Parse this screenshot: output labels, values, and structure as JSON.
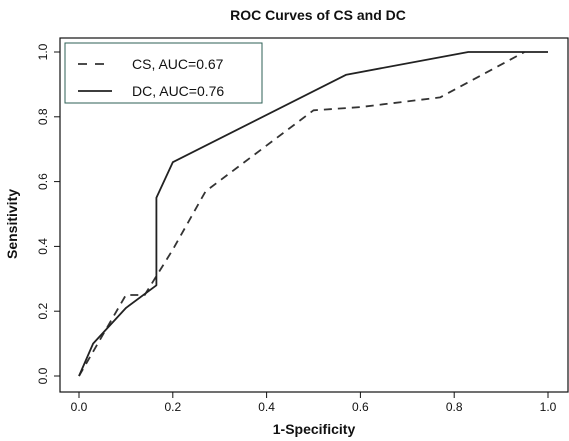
{
  "chart_data": {
    "type": "line",
    "title": "ROC Curves of CS and DC",
    "xlabel": "1-Specificity",
    "ylabel": "Sensitivity",
    "xlim": [
      0,
      1
    ],
    "ylim": [
      0,
      1
    ],
    "xticks": [
      0.0,
      0.2,
      0.4,
      0.6,
      0.8,
      1.0
    ],
    "yticks": [
      0.0,
      0.2,
      0.4,
      0.6,
      0.8,
      1.0
    ],
    "tick_format": "0.0",
    "grid": false,
    "legend_position": "top-left",
    "series": [
      {
        "name": "CS, AUC=0.67",
        "style": "dashed",
        "color": "#333333",
        "x": [
          0.0,
          0.1,
          0.14,
          0.2,
          0.27,
          0.5,
          0.6,
          0.77,
          0.95
        ],
        "y": [
          0.0,
          0.25,
          0.25,
          0.39,
          0.57,
          0.82,
          0.83,
          0.86,
          1.0
        ]
      },
      {
        "name": "DC, AUC=0.76",
        "style": "solid",
        "color": "#222222",
        "x": [
          0.0,
          0.03,
          0.1,
          0.165,
          0.165,
          0.2,
          0.57,
          0.83,
          1.0
        ],
        "y": [
          0.0,
          0.1,
          0.21,
          0.28,
          0.55,
          0.66,
          0.93,
          1.0,
          1.0
        ]
      }
    ]
  }
}
